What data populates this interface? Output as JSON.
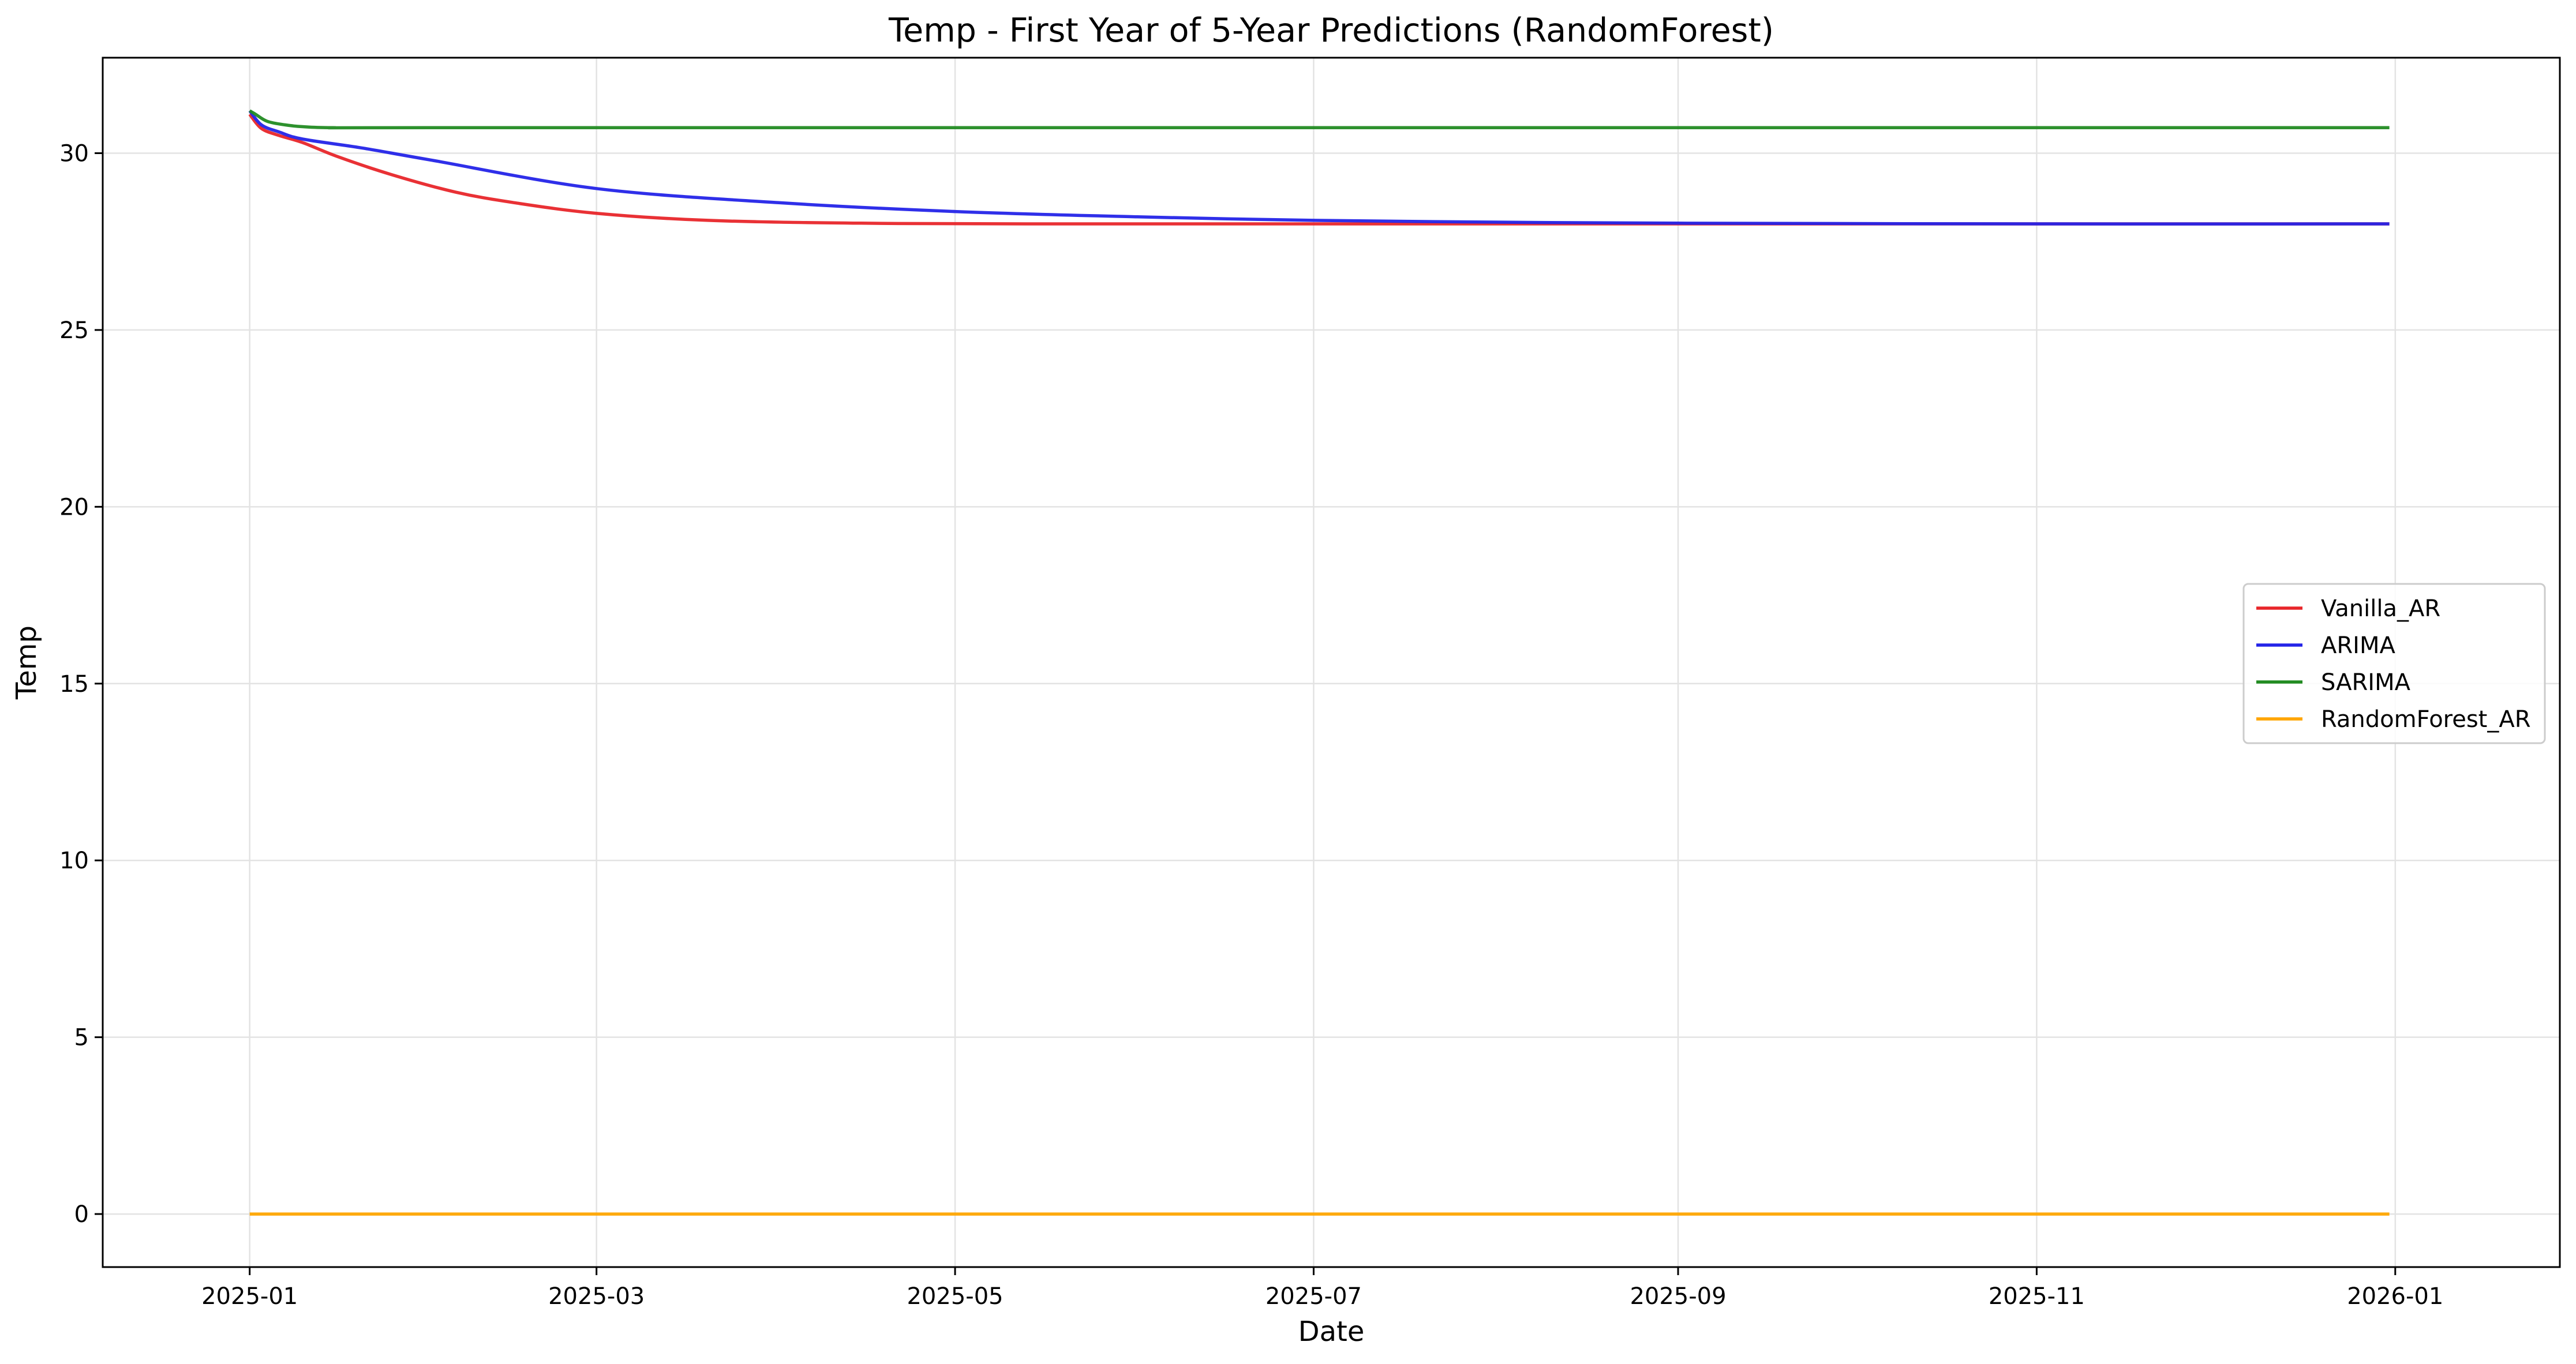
{
  "chart_data": {
    "type": "line",
    "title": "Temp - First Year of 5-Year Predictions (RandomForest)",
    "xlabel": "Date",
    "ylabel": "Temp",
    "x_range": [
      "2024-12-07",
      "2026-01-29"
    ],
    "xlim": [
      "2024-12-07",
      "2026-01-29"
    ],
    "ylim": [
      -1.5,
      32.7
    ],
    "x_ticks": [
      "2025-01",
      "2025-03",
      "2025-05",
      "2025-07",
      "2025-09",
      "2025-11",
      "2026-01"
    ],
    "y_ticks": [
      0,
      5,
      10,
      15,
      20,
      25,
      30
    ],
    "grid": true,
    "legend_position": "center-right",
    "series": [
      {
        "name": "Vanilla_AR",
        "color": "#e8262a",
        "points": [
          [
            "2025-01-01",
            31.1
          ],
          [
            "2025-01-03",
            30.7
          ],
          [
            "2025-01-06",
            30.5
          ],
          [
            "2025-01-10",
            30.3
          ],
          [
            "2025-01-16",
            29.9
          ],
          [
            "2025-01-25",
            29.4
          ],
          [
            "2025-02-05",
            28.9
          ],
          [
            "2025-02-15",
            28.6
          ],
          [
            "2025-03-01",
            28.3
          ],
          [
            "2025-03-20",
            28.1
          ],
          [
            "2025-04-15",
            28.02
          ],
          [
            "2025-05-15",
            28.0
          ],
          [
            "2025-07-01",
            28.0
          ],
          [
            "2025-09-01",
            28.0
          ],
          [
            "2025-11-01",
            28.0
          ],
          [
            "2025-12-31",
            28.0
          ]
        ]
      },
      {
        "name": "ARIMA",
        "color": "#2424e8",
        "points": [
          [
            "2025-01-01",
            31.2
          ],
          [
            "2025-01-03",
            30.8
          ],
          [
            "2025-01-06",
            30.6
          ],
          [
            "2025-01-10",
            30.4
          ],
          [
            "2025-01-20",
            30.15
          ],
          [
            "2025-02-01",
            29.8
          ],
          [
            "2025-03-01",
            29.0
          ],
          [
            "2025-04-01",
            28.6
          ],
          [
            "2025-05-01",
            28.35
          ],
          [
            "2025-06-01",
            28.2
          ],
          [
            "2025-07-01",
            28.1
          ],
          [
            "2025-08-01",
            28.05
          ],
          [
            "2025-09-01",
            28.02
          ],
          [
            "2025-11-01",
            28.0
          ],
          [
            "2025-12-31",
            28.0
          ]
        ]
      },
      {
        "name": "SARIMA",
        "color": "#228b22",
        "points": [
          [
            "2025-01-01",
            31.2
          ],
          [
            "2025-01-02",
            31.1
          ],
          [
            "2025-01-04",
            30.9
          ],
          [
            "2025-01-07",
            30.8
          ],
          [
            "2025-01-10",
            30.75
          ],
          [
            "2025-01-15",
            30.72
          ],
          [
            "2025-02-01",
            30.72
          ],
          [
            "2025-07-01",
            30.72
          ],
          [
            "2025-12-31",
            30.72
          ]
        ]
      },
      {
        "name": "RandomForest_AR",
        "color": "#ffa500",
        "points": [
          [
            "2025-01-01",
            0.0
          ],
          [
            "2025-12-31",
            0.0
          ]
        ]
      }
    ]
  }
}
